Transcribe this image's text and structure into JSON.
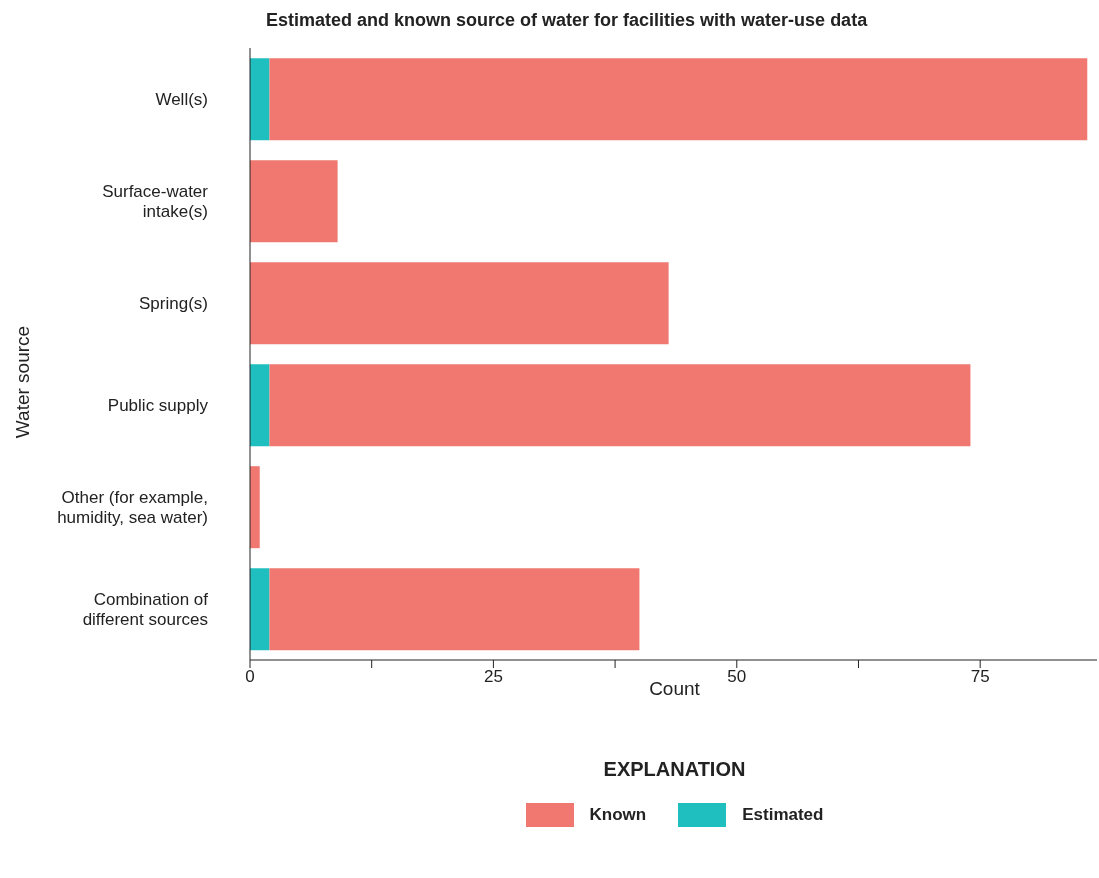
{
  "chart_data": {
    "type": "bar",
    "title": "Estimated and known source of water for facilities with water-use data",
    "xlabel": "Count",
    "ylabel": "Water source",
    "legend_title": "EXPLANATION",
    "orientation": "horizontal",
    "stacked": true,
    "legend": "bottom",
    "categories": [
      "Well(s)",
      "Surface-water intake(s)",
      "Spring(s)",
      "Public supply",
      "Other (for example, humidity, sea water)",
      "Combination of different sources"
    ],
    "series": [
      {
        "name": "Estimated",
        "color": "#1fbfbf",
        "values": [
          2,
          0,
          0,
          2,
          0,
          2
        ]
      },
      {
        "name": "Known",
        "color": "#f07870",
        "values": [
          84,
          9,
          43,
          72,
          1,
          38
        ]
      }
    ],
    "xlim": [
      0,
      87
    ],
    "xticks": [
      0,
      {
        "value": 12.5,
        "label": null
      },
      25,
      {
        "value": 37.5,
        "label": null
      },
      50,
      {
        "value": 62.5,
        "label": null
      },
      75
    ]
  }
}
